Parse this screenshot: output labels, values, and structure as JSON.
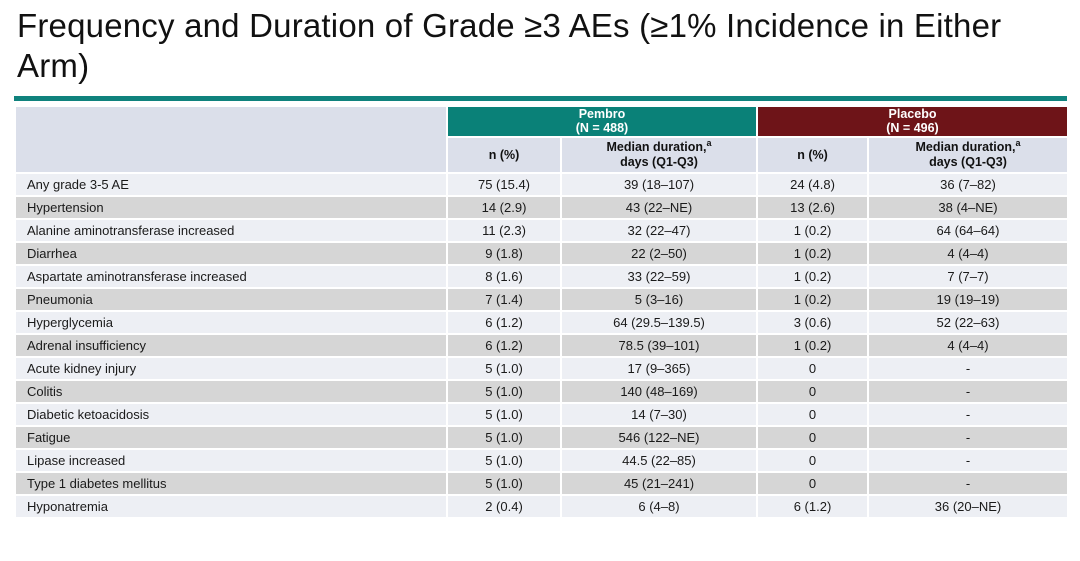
{
  "slide": {
    "title": "Frequency and Duration of Grade ≥3 AEs (≥1% Incidence in Either Arm)"
  },
  "table": {
    "groups": [
      {
        "label": "Pembro",
        "n": "(N = 488)"
      },
      {
        "label": "Placebo",
        "n": "(N = 496)"
      }
    ],
    "subheader": {
      "n_pct": "n (%)",
      "median_line1": "Median duration,",
      "median_sup": "a",
      "median_line2": "days (Q1-Q3)"
    },
    "rows": [
      {
        "ae": "Any grade 3-5 AE",
        "pembro_n": "75 (15.4)",
        "pembro_dur": "39 (18–107)",
        "placebo_n": "24 (4.8)",
        "placebo_dur": "36 (7–82)"
      },
      {
        "ae": "Hypertension",
        "pembro_n": "14 (2.9)",
        "pembro_dur": "43 (22–NE)",
        "placebo_n": "13 (2.6)",
        "placebo_dur": "38 (4–NE)"
      },
      {
        "ae": "Alanine aminotransferase increased",
        "pembro_n": "11 (2.3)",
        "pembro_dur": "32 (22–47)",
        "placebo_n": "1 (0.2)",
        "placebo_dur": "64 (64–64)"
      },
      {
        "ae": "Diarrhea",
        "pembro_n": "9 (1.8)",
        "pembro_dur": "22 (2–50)",
        "placebo_n": "1 (0.2)",
        "placebo_dur": "4 (4–4)"
      },
      {
        "ae": "Aspartate aminotransferase increased",
        "pembro_n": "8 (1.6)",
        "pembro_dur": "33 (22–59)",
        "placebo_n": "1 (0.2)",
        "placebo_dur": "7 (7–7)"
      },
      {
        "ae": "Pneumonia",
        "pembro_n": "7 (1.4)",
        "pembro_dur": "5 (3–16)",
        "placebo_n": "1 (0.2)",
        "placebo_dur": "19 (19–19)"
      },
      {
        "ae": "Hyperglycemia",
        "pembro_n": "6 (1.2)",
        "pembro_dur": "64 (29.5–139.5)",
        "placebo_n": "3 (0.6)",
        "placebo_dur": "52 (22–63)"
      },
      {
        "ae": "Adrenal insufficiency",
        "pembro_n": "6 (1.2)",
        "pembro_dur": "78.5 (39–101)",
        "placebo_n": "1 (0.2)",
        "placebo_dur": "4 (4–4)"
      },
      {
        "ae": "Acute kidney injury",
        "pembro_n": "5 (1.0)",
        "pembro_dur": "17 (9–365)",
        "placebo_n": "0",
        "placebo_dur": "-"
      },
      {
        "ae": "Colitis",
        "pembro_n": "5 (1.0)",
        "pembro_dur": "140 (48–169)",
        "placebo_n": "0",
        "placebo_dur": "-"
      },
      {
        "ae": "Diabetic ketoacidosis",
        "pembro_n": "5 (1.0)",
        "pembro_dur": "14 (7–30)",
        "placebo_n": "0",
        "placebo_dur": "-"
      },
      {
        "ae": "Fatigue",
        "pembro_n": "5 (1.0)",
        "pembro_dur": "546 (122–NE)",
        "placebo_n": "0",
        "placebo_dur": "-"
      },
      {
        "ae": "Lipase increased",
        "pembro_n": "5 (1.0)",
        "pembro_dur": "44.5 (22–85)",
        "placebo_n": "0",
        "placebo_dur": "-"
      },
      {
        "ae": "Type 1 diabetes mellitus",
        "pembro_n": "5 (1.0)",
        "pembro_dur": "45 (21–241)",
        "placebo_n": "0",
        "placebo_dur": "-"
      },
      {
        "ae": "Hyponatremia",
        "pembro_n": "2 (0.4)",
        "pembro_dur": "6 (4–8)",
        "placebo_n": "6 (1.2)",
        "placebo_dur": "36 (20–NE)"
      }
    ]
  },
  "colors": {
    "pembro_header": "#0A8178",
    "placebo_header": "#6E1418",
    "title_rule": "#0F827D",
    "subheader_bg": "#DBDFEA",
    "row_light": "#EDEFF4",
    "row_dark": "#D6D6D6"
  }
}
